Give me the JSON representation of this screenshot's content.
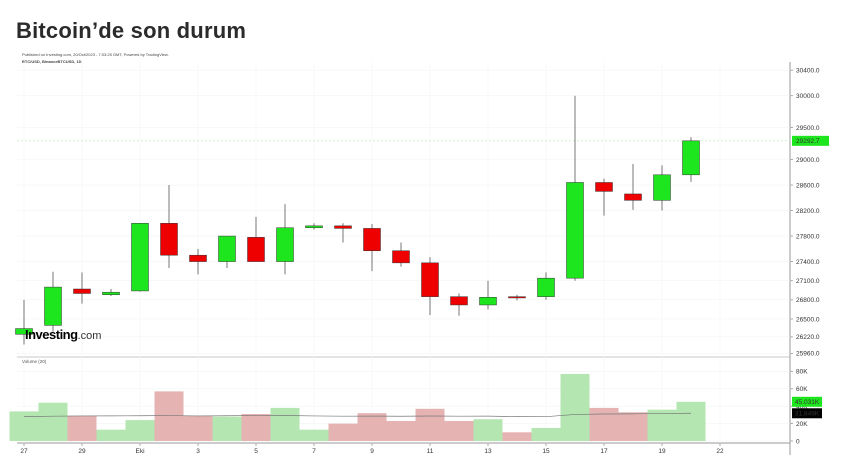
{
  "header": {
    "title": "Bitcoin’de son durum",
    "published": "Published on Investing.com, 20/Oct/2023 - 7:03:25 GMT, Powered by TradingView.",
    "symbol": "BTC/USD, BinanceBTCUSD, 1D",
    "volume_label": "Volume (20)"
  },
  "logo": {
    "text": "Investing",
    "suffix": ".com"
  },
  "colors": {
    "up": "#1ee61e",
    "down": "#ee0000",
    "vol_up": "#b3e6b0",
    "vol_down": "#e6b3b3",
    "last_price_bg": "#1ee61e",
    "vol_ma_bg": "#000000"
  },
  "chart_data": [
    {
      "type": "candlestick",
      "x_labels": [
        "27",
        "29",
        "Eki",
        "3",
        "5",
        "7",
        "9",
        "11",
        "13",
        "15",
        "17",
        "19",
        "22"
      ],
      "y_ticks": [
        25960.0,
        26220.0,
        26500.0,
        26800.0,
        27100.0,
        27400.0,
        27800.0,
        28200.0,
        28600.0,
        29000.0,
        29500.0,
        30000.0,
        30400.0
      ],
      "ylim": [
        25920,
        30450
      ],
      "last_price": 29292.7,
      "candles": [
        {
          "o": 26260,
          "h": 26800,
          "l": 26100,
          "c": 26350
        },
        {
          "o": 26400,
          "h": 27240,
          "l": 26300,
          "c": 27000
        },
        {
          "o": 26970,
          "h": 27230,
          "l": 26740,
          "c": 26900
        },
        {
          "o": 26880,
          "h": 26970,
          "l": 26860,
          "c": 26920
        },
        {
          "o": 26940,
          "h": 28000,
          "l": 26930,
          "c": 28000
        },
        {
          "o": 28000,
          "h": 28600,
          "l": 27300,
          "c": 27500
        },
        {
          "o": 27500,
          "h": 27600,
          "l": 27200,
          "c": 27400
        },
        {
          "o": 27400,
          "h": 27800,
          "l": 27300,
          "c": 27800
        },
        {
          "o": 27780,
          "h": 28100,
          "l": 27400,
          "c": 27400
        },
        {
          "o": 27400,
          "h": 28300,
          "l": 27200,
          "c": 27930
        },
        {
          "o": 27930,
          "h": 28000,
          "l": 27900,
          "c": 27960
        },
        {
          "o": 27960,
          "h": 28000,
          "l": 27700,
          "c": 27920
        },
        {
          "o": 27920,
          "h": 27990,
          "l": 27250,
          "c": 27570
        },
        {
          "o": 27570,
          "h": 27700,
          "l": 27320,
          "c": 27380
        },
        {
          "o": 27380,
          "h": 27470,
          "l": 26560,
          "c": 26850
        },
        {
          "o": 26850,
          "h": 26900,
          "l": 26550,
          "c": 26720
        },
        {
          "o": 26720,
          "h": 27100,
          "l": 26650,
          "c": 26840
        },
        {
          "o": 26850,
          "h": 26880,
          "l": 26790,
          "c": 26830
        },
        {
          "o": 26850,
          "h": 27230,
          "l": 26800,
          "c": 27140
        },
        {
          "o": 27140,
          "h": 30000,
          "l": 27100,
          "c": 28640
        },
        {
          "o": 28640,
          "h": 28700,
          "l": 28120,
          "c": 28500
        },
        {
          "o": 28460,
          "h": 28930,
          "l": 28210,
          "c": 28360
        },
        {
          "o": 28360,
          "h": 28910,
          "l": 28200,
          "c": 28760
        },
        {
          "o": 28760,
          "h": 29350,
          "l": 28650,
          "c": 29292.7
        }
      ]
    },
    {
      "type": "bar",
      "title": "Volume (20)",
      "y_ticks_labels": [
        "0",
        "20K",
        "40K",
        "60K",
        "80K"
      ],
      "y_ticks": [
        0,
        20000,
        40000,
        60000,
        80000
      ],
      "ylim": [
        0,
        85000
      ],
      "last_volume_label": "45.031K",
      "ma_label": "31.849K",
      "values": [
        34000,
        44000,
        29000,
        13000,
        24000,
        57000,
        29000,
        28000,
        31000,
        38000,
        13000,
        20000,
        32000,
        23000,
        37000,
        23000,
        25000,
        10000,
        15000,
        77000,
        38000,
        33000,
        36000,
        45031
      ],
      "ma_values": [
        28000,
        28500,
        28800,
        28900,
        29000,
        29200,
        28800,
        29000,
        29200,
        29300,
        28800,
        28500,
        28600,
        28400,
        28700,
        28500,
        28600,
        28000,
        27900,
        30500,
        31000,
        31200,
        31500,
        31849
      ]
    }
  ]
}
